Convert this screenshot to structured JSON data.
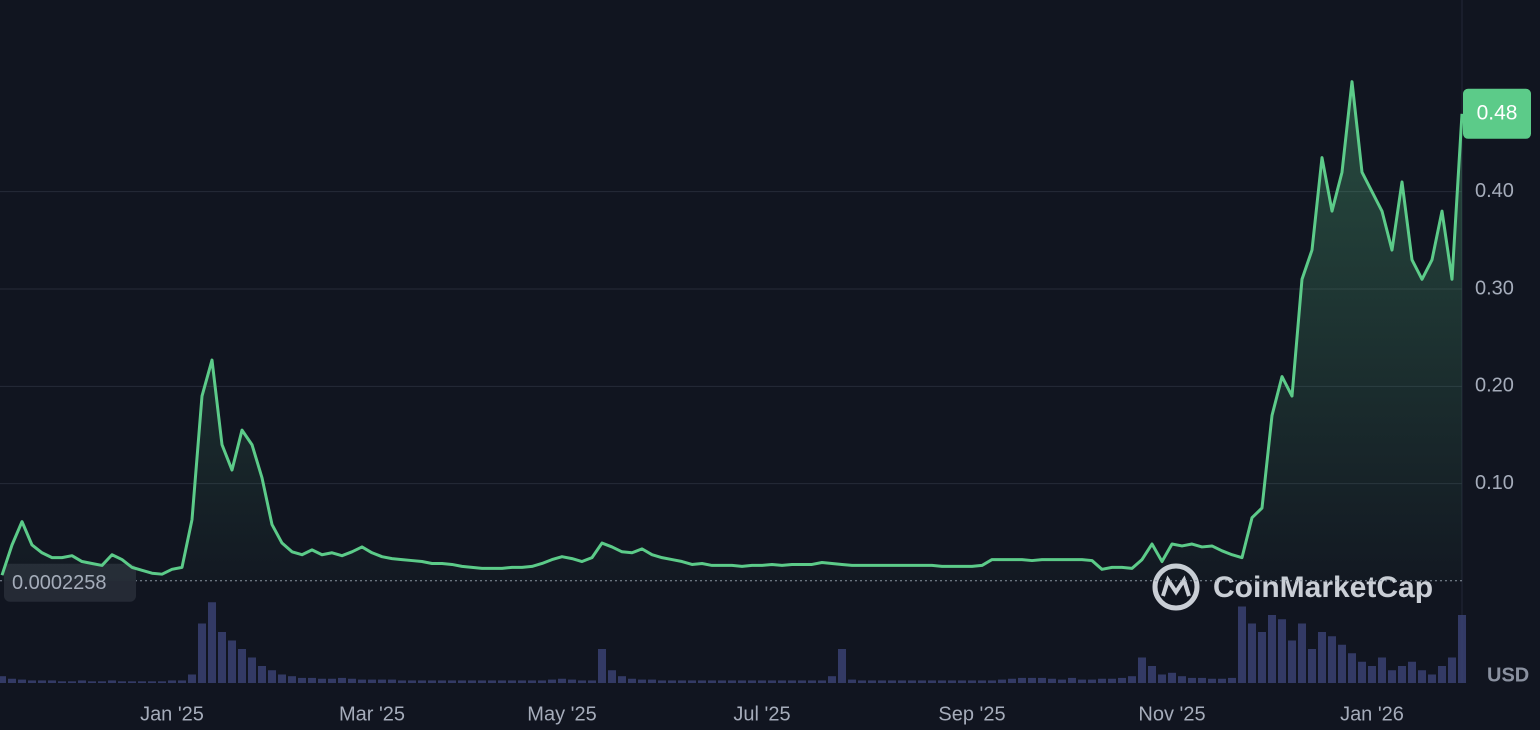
{
  "chart_data": {
    "type": "line",
    "categories": [
      null,
      null,
      null,
      null,
      null,
      null,
      null,
      null,
      null,
      null,
      null,
      null,
      null,
      null,
      null,
      null,
      null,
      "Jan '25",
      null,
      null,
      null,
      null,
      null,
      null,
      null,
      null,
      null,
      null,
      null,
      null,
      null,
      null,
      null,
      null,
      null,
      null,
      null,
      "Mar '25",
      null,
      null,
      null,
      null,
      null,
      null,
      null,
      null,
      null,
      null,
      null,
      null,
      null,
      null,
      null,
      null,
      null,
      null,
      "May '25",
      null,
      null,
      null,
      null,
      null,
      null,
      null,
      null,
      null,
      null,
      null,
      null,
      null,
      null,
      null,
      null,
      null,
      null,
      null,
      "Jul '25",
      null,
      null,
      null,
      null,
      null,
      null,
      null,
      null,
      null,
      null,
      null,
      null,
      null,
      null,
      null,
      null,
      null,
      null,
      null,
      null,
      "Sep '25",
      null,
      null,
      null,
      null,
      null,
      null,
      null,
      null,
      null,
      null,
      null,
      null,
      null,
      null,
      null,
      null,
      null,
      null,
      null,
      "Nov '25",
      null,
      null,
      null,
      null,
      null,
      null,
      null,
      null,
      null,
      null,
      null,
      null,
      null,
      null,
      null,
      null,
      null,
      null,
      null,
      "Jan '26",
      null,
      null,
      null,
      null,
      null,
      null,
      null,
      null,
      null
    ],
    "series": [
      {
        "color": "#5ccb89",
        "values": [
          0.006,
          0.037,
          0.061,
          0.037,
          0.029,
          0.024,
          0.024,
          0.026,
          0.02,
          0.018,
          0.016,
          0.027,
          0.022,
          0.014,
          0.011,
          0.008,
          0.007,
          0.012,
          0.014,
          0.063,
          0.19,
          0.227,
          0.14,
          0.114,
          0.155,
          0.14,
          0.106,
          0.058,
          0.039,
          0.03,
          0.027,
          0.032,
          0.027,
          0.029,
          0.026,
          0.03,
          0.035,
          0.029,
          0.025,
          0.023,
          0.022,
          0.021,
          0.02,
          0.018,
          0.018,
          0.017,
          0.015,
          0.014,
          0.013,
          0.013,
          0.013,
          0.014,
          0.014,
          0.015,
          0.018,
          0.022,
          0.025,
          0.023,
          0.02,
          0.024,
          0.039,
          0.035,
          0.03,
          0.029,
          0.033,
          0.027,
          0.024,
          0.022,
          0.02,
          0.017,
          0.018,
          0.016,
          0.016,
          0.016,
          0.015,
          0.016,
          0.016,
          0.017,
          0.016,
          0.017,
          0.017,
          0.017,
          0.019,
          0.018,
          0.017,
          0.016,
          0.016,
          0.016,
          0.016,
          0.016,
          0.016,
          0.016,
          0.016,
          0.016,
          0.015,
          0.015,
          0.015,
          0.015,
          0.016,
          0.022,
          0.022,
          0.022,
          0.022,
          0.021,
          0.022,
          0.022,
          0.022,
          0.022,
          0.022,
          0.021,
          0.012,
          0.014,
          0.014,
          0.013,
          0.022,
          0.038,
          0.02,
          0.038,
          0.036,
          0.038,
          0.035,
          0.036,
          0.031,
          0.027,
          0.024,
          0.065,
          0.075,
          0.17,
          0.21,
          0.19,
          0.31,
          0.34,
          0.435,
          0.38,
          0.42,
          0.513,
          0.42,
          0.4,
          0.38,
          0.34,
          0.41,
          0.33,
          0.31,
          0.33,
          0.38,
          0.31,
          0.48
        ]
      }
    ],
    "ylim": [
      0,
      0.6
    ],
    "yticks": [
      {
        "value": 0.1,
        "label": "0.10"
      },
      {
        "value": 0.2,
        "label": "0.20"
      },
      {
        "value": 0.3,
        "label": "0.30"
      },
      {
        "value": 0.4,
        "label": "0.40"
      }
    ],
    "grid": true,
    "min_line": 0.0002258,
    "volume": {
      "color": "#3a4172",
      "ylim": [
        0,
        100
      ],
      "label": "USD",
      "values": [
        8,
        5,
        4,
        3,
        3,
        3,
        2,
        2,
        3,
        2,
        2,
        3,
        2,
        2,
        2,
        2,
        2,
        3,
        3,
        10,
        70,
        95,
        60,
        50,
        40,
        30,
        20,
        15,
        10,
        8,
        6,
        6,
        5,
        5,
        6,
        5,
        4,
        4,
        4,
        4,
        3,
        3,
        3,
        3,
        3,
        3,
        3,
        3,
        3,
        3,
        3,
        3,
        3,
        3,
        3,
        4,
        5,
        4,
        3,
        3,
        40,
        15,
        8,
        5,
        4,
        4,
        3,
        3,
        3,
        3,
        3,
        3,
        3,
        3,
        3,
        3,
        3,
        3,
        3,
        3,
        3,
        3,
        3,
        8,
        40,
        4,
        3,
        3,
        3,
        3,
        3,
        3,
        3,
        3,
        3,
        3,
        3,
        3,
        3,
        3,
        4,
        5,
        6,
        6,
        6,
        5,
        4,
        6,
        4,
        4,
        5,
        5,
        6,
        8,
        30,
        20,
        10,
        12,
        8,
        6,
        6,
        5,
        5,
        6,
        90,
        70,
        60,
        80,
        75,
        50,
        70,
        40,
        60,
        55,
        45,
        35,
        25,
        20,
        30,
        15,
        20,
        25,
        15,
        10,
        20,
        30,
        80
      ]
    },
    "watermark": "CoinMarketCap"
  }
}
